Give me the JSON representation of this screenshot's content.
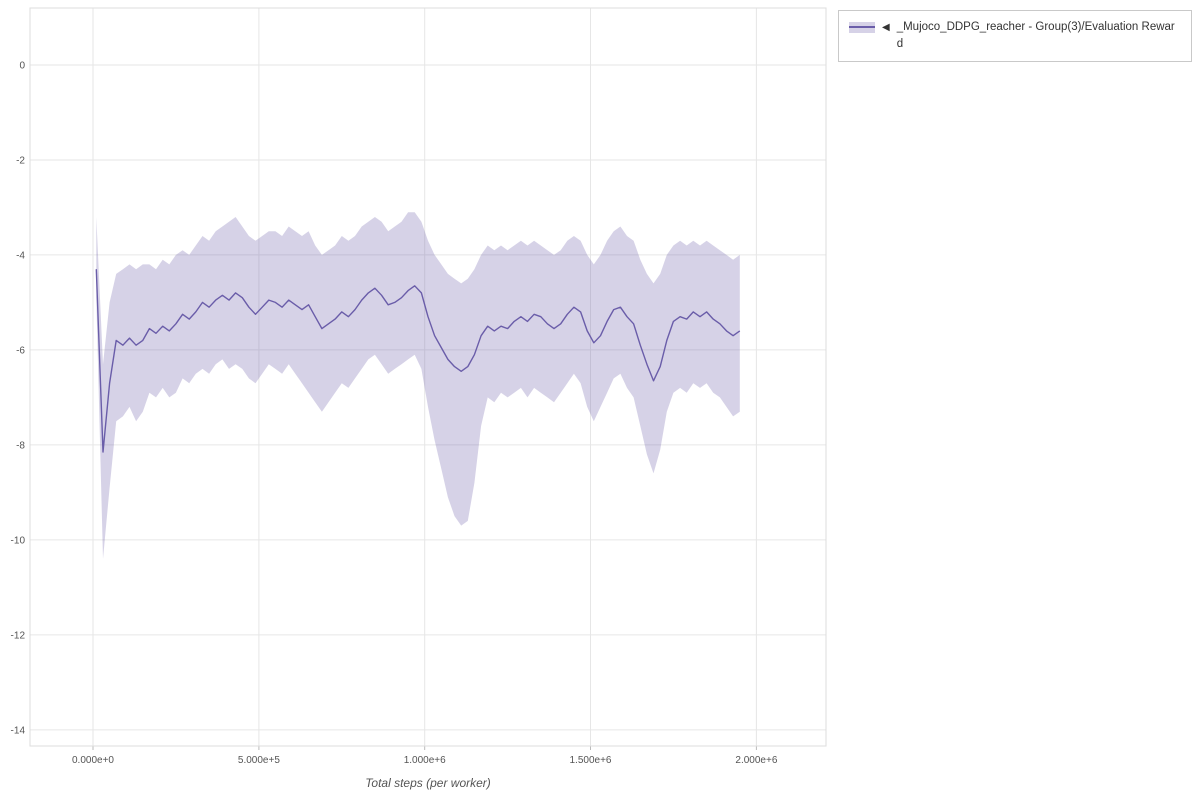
{
  "legend": {
    "collapse_icon": "◀",
    "series_label": "_Mujoco_DDPG_reacher - Group(3)/Evaluation Reward"
  },
  "chart_data": {
    "type": "line",
    "title": "",
    "xlabel": "Total steps (per worker)",
    "ylabel": "",
    "xlim": [
      -190000,
      2210000
    ],
    "ylim": [
      -14.34,
      1.2
    ],
    "grid": true,
    "legend_position": "top-right",
    "x_ticks": [
      {
        "value": 0,
        "label": "0.000e+0"
      },
      {
        "value": 500000,
        "label": "5.000e+5"
      },
      {
        "value": 1000000,
        "label": "1.000e+6"
      },
      {
        "value": 1500000,
        "label": "1.500e+6"
      },
      {
        "value": 2000000,
        "label": "2.000e+6"
      }
    ],
    "y_ticks": [
      {
        "value": 0,
        "label": "0"
      },
      {
        "value": -2,
        "label": "-2"
      },
      {
        "value": -4,
        "label": "-4"
      },
      {
        "value": -6,
        "label": "-6"
      },
      {
        "value": -8,
        "label": "-8"
      },
      {
        "value": -10,
        "label": "-10"
      },
      {
        "value": -12,
        "label": "-12"
      },
      {
        "value": -14,
        "label": "-14"
      }
    ],
    "colors": {
      "line": "#6a5da9",
      "band": "#6a5da9",
      "band_opacity": 0.28,
      "grid": "#e6e6e6",
      "border": "#dddddd",
      "tick_text": "#545454",
      "axis_text": "#555555"
    },
    "series": [
      {
        "name": "_Mujoco_DDPG_reacher - Group(3)/Evaluation Reward",
        "x": [
          10000,
          30000,
          50000,
          70000,
          90000,
          110000,
          130000,
          150000,
          170000,
          190000,
          210000,
          230000,
          250000,
          270000,
          290000,
          310000,
          330000,
          350000,
          370000,
          390000,
          410000,
          430000,
          450000,
          470000,
          490000,
          510000,
          530000,
          550000,
          570000,
          590000,
          610000,
          630000,
          650000,
          670000,
          690000,
          710000,
          730000,
          750000,
          770000,
          790000,
          810000,
          830000,
          850000,
          870000,
          890000,
          910000,
          930000,
          950000,
          970000,
          990000,
          1010000,
          1030000,
          1050000,
          1070000,
          1090000,
          1110000,
          1130000,
          1150000,
          1170000,
          1190000,
          1210000,
          1230000,
          1250000,
          1270000,
          1290000,
          1310000,
          1330000,
          1350000,
          1370000,
          1390000,
          1410000,
          1430000,
          1450000,
          1470000,
          1490000,
          1510000,
          1530000,
          1550000,
          1570000,
          1590000,
          1610000,
          1630000,
          1650000,
          1670000,
          1690000,
          1710000,
          1730000,
          1750000,
          1770000,
          1790000,
          1810000,
          1830000,
          1850000,
          1870000,
          1890000,
          1910000,
          1930000,
          1950000
        ],
        "mean": [
          -4.3,
          -8.15,
          -6.7,
          -5.8,
          -5.9,
          -5.75,
          -5.9,
          -5.8,
          -5.55,
          -5.65,
          -5.5,
          -5.6,
          -5.45,
          -5.25,
          -5.35,
          -5.2,
          -5.0,
          -5.1,
          -4.95,
          -4.85,
          -4.95,
          -4.8,
          -4.9,
          -5.1,
          -5.25,
          -5.1,
          -4.95,
          -5.0,
          -5.1,
          -4.95,
          -5.05,
          -5.15,
          -5.05,
          -5.3,
          -5.55,
          -5.45,
          -5.35,
          -5.2,
          -5.3,
          -5.15,
          -4.95,
          -4.8,
          -4.7,
          -4.85,
          -5.05,
          -5.0,
          -4.9,
          -4.75,
          -4.65,
          -4.8,
          -5.3,
          -5.7,
          -5.95,
          -6.2,
          -6.35,
          -6.45,
          -6.35,
          -6.1,
          -5.7,
          -5.5,
          -5.6,
          -5.5,
          -5.55,
          -5.4,
          -5.3,
          -5.4,
          -5.25,
          -5.3,
          -5.45,
          -5.55,
          -5.45,
          -5.25,
          -5.1,
          -5.2,
          -5.6,
          -5.85,
          -5.7,
          -5.4,
          -5.15,
          -5.1,
          -5.3,
          -5.45,
          -5.9,
          -6.3,
          -6.65,
          -6.35,
          -5.8,
          -5.4,
          -5.3,
          -5.35,
          -5.2,
          -5.3,
          -5.2,
          -5.35,
          -5.45,
          -5.6,
          -5.7,
          -5.6
        ],
        "upper": [
          -3.2,
          -6.3,
          -5.0,
          -4.4,
          -4.3,
          -4.2,
          -4.3,
          -4.2,
          -4.2,
          -4.3,
          -4.1,
          -4.2,
          -4.0,
          -3.9,
          -4.0,
          -3.8,
          -3.6,
          -3.7,
          -3.5,
          -3.4,
          -3.3,
          -3.2,
          -3.4,
          -3.6,
          -3.7,
          -3.6,
          -3.5,
          -3.5,
          -3.6,
          -3.4,
          -3.5,
          -3.6,
          -3.5,
          -3.8,
          -4.0,
          -3.9,
          -3.8,
          -3.6,
          -3.7,
          -3.6,
          -3.4,
          -3.3,
          -3.2,
          -3.3,
          -3.5,
          -3.4,
          -3.3,
          -3.1,
          -3.1,
          -3.3,
          -3.7,
          -4.0,
          -4.2,
          -4.4,
          -4.5,
          -4.6,
          -4.5,
          -4.3,
          -4.0,
          -3.8,
          -3.9,
          -3.8,
          -3.9,
          -3.8,
          -3.7,
          -3.8,
          -3.7,
          -3.8,
          -3.9,
          -4.0,
          -3.9,
          -3.7,
          -3.6,
          -3.7,
          -4.0,
          -4.2,
          -4.0,
          -3.7,
          -3.5,
          -3.4,
          -3.6,
          -3.7,
          -4.1,
          -4.4,
          -4.6,
          -4.4,
          -4.0,
          -3.8,
          -3.7,
          -3.8,
          -3.7,
          -3.8,
          -3.7,
          -3.8,
          -3.9,
          -4.0,
          -4.1,
          -4.0
        ],
        "lower": [
          -4.9,
          -10.4,
          -8.9,
          -7.5,
          -7.4,
          -7.2,
          -7.5,
          -7.3,
          -6.9,
          -7.0,
          -6.8,
          -7.0,
          -6.9,
          -6.6,
          -6.7,
          -6.5,
          -6.4,
          -6.5,
          -6.3,
          -6.2,
          -6.4,
          -6.3,
          -6.4,
          -6.6,
          -6.7,
          -6.5,
          -6.3,
          -6.4,
          -6.5,
          -6.3,
          -6.5,
          -6.7,
          -6.9,
          -7.1,
          -7.3,
          -7.1,
          -6.9,
          -6.7,
          -6.8,
          -6.6,
          -6.4,
          -6.2,
          -6.1,
          -6.3,
          -6.5,
          -6.4,
          -6.3,
          -6.2,
          -6.1,
          -6.4,
          -7.2,
          -7.9,
          -8.5,
          -9.1,
          -9.5,
          -9.7,
          -9.6,
          -8.8,
          -7.6,
          -7.0,
          -7.1,
          -6.9,
          -7.0,
          -6.9,
          -6.8,
          -7.0,
          -6.8,
          -6.9,
          -7.0,
          -7.1,
          -6.9,
          -6.7,
          -6.5,
          -6.7,
          -7.2,
          -7.5,
          -7.2,
          -6.9,
          -6.6,
          -6.5,
          -6.8,
          -7.0,
          -7.6,
          -8.2,
          -8.6,
          -8.1,
          -7.3,
          -6.9,
          -6.8,
          -6.9,
          -6.7,
          -6.8,
          -6.7,
          -6.9,
          -7.0,
          -7.2,
          -7.4,
          -7.3
        ]
      }
    ]
  }
}
